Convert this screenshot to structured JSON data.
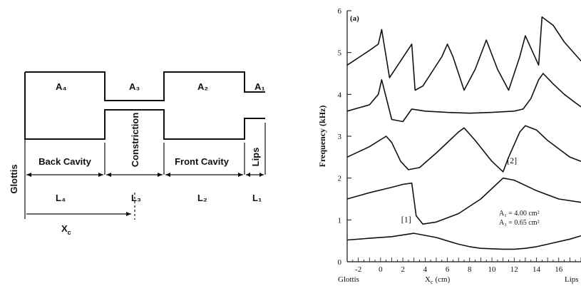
{
  "tube_diagram": {
    "areas": [
      "A₄",
      "A₃",
      "A₂",
      "A₁"
    ],
    "sections": {
      "glottis": "Glottis",
      "back_cavity": "Back Cavity",
      "constriction": "Constriction",
      "front_cavity": "Front Cavity",
      "lips": "Lips"
    },
    "lengths": [
      "L₄",
      "L₃",
      "L₂",
      "L₁"
    ],
    "xc": "X",
    "xc_sub": "c"
  },
  "chart_data": {
    "type": "line",
    "panel_label": "(a)",
    "xlabel": "X",
    "xlabel_sub": "c",
    "xlabel_unit": "(cm)",
    "ylabel": "Frequency (kHz)",
    "xlim": [
      -3,
      18
    ],
    "ylim": [
      0,
      6
    ],
    "x_ticks": [
      -2,
      0,
      2,
      4,
      6,
      8,
      10,
      12,
      14,
      16
    ],
    "y_ticks": [
      0,
      1,
      2,
      3,
      4,
      5,
      6
    ],
    "x_end_labels": {
      "left": "Glottis",
      "right": "Lips"
    },
    "annotations": [
      {
        "text": "[1]",
        "x": 2.3,
        "y": 0.95
      },
      {
        "text": "[2]",
        "x": 11.8,
        "y": 2.35
      }
    ],
    "area_values": [
      "A₁ = 4.00 cm²",
      "A₃ = 0.65 cm²"
    ],
    "series": [
      {
        "x": [
          -3,
          -1,
          1,
          3,
          5,
          7,
          8,
          9,
          11,
          12,
          13,
          14,
          15,
          16,
          17,
          18
        ],
        "values": [
          0.52,
          0.56,
          0.6,
          0.68,
          0.58,
          0.42,
          0.36,
          0.32,
          0.3,
          0.3,
          0.32,
          0.36,
          0.42,
          0.48,
          0.54,
          0.62
        ]
      },
      {
        "x": [
          -3,
          -1,
          1,
          2,
          2.8,
          3.2,
          3.8,
          5,
          7,
          9,
          11,
          12,
          14,
          16,
          18
        ],
        "values": [
          1.5,
          1.65,
          1.78,
          1.85,
          1.88,
          1.1,
          0.9,
          0.95,
          1.15,
          1.5,
          2.0,
          1.95,
          1.7,
          1.5,
          1.42
        ]
      },
      {
        "x": [
          -3,
          -1,
          0.5,
          1,
          1.8,
          2.5,
          3.5,
          5,
          7,
          7.5,
          8.5,
          10,
          11,
          11.5,
          12.5,
          13,
          14,
          15,
          16,
          17,
          18
        ],
        "values": [
          2.5,
          2.75,
          3.0,
          2.85,
          2.4,
          2.2,
          2.25,
          2.6,
          3.1,
          3.2,
          2.9,
          2.4,
          2.15,
          2.5,
          3.1,
          3.25,
          3.15,
          2.9,
          2.7,
          2.5,
          2.4
        ]
      },
      {
        "x": [
          -3,
          -1,
          -0.2,
          0.1,
          1,
          2,
          2.8,
          4,
          6,
          8,
          10,
          12,
          12.8,
          13.5,
          14.2,
          14.6,
          15.5,
          16.5,
          17.5,
          18
        ],
        "values": [
          3.6,
          3.75,
          4.0,
          4.35,
          3.4,
          3.35,
          3.65,
          3.6,
          3.57,
          3.55,
          3.57,
          3.6,
          3.65,
          3.9,
          4.35,
          4.5,
          4.25,
          4.0,
          3.8,
          3.7
        ]
      },
      {
        "x": [
          -3,
          -1,
          -0.2,
          0.1,
          0.8,
          2.8,
          3.1,
          3.8,
          5.5,
          6,
          6.5,
          7.5,
          8.5,
          9.5,
          10.5,
          11.5,
          12.5,
          13,
          14.2,
          14.5,
          15.5,
          16.5,
          17.5,
          18
        ],
        "values": [
          4.7,
          5.05,
          5.2,
          5.55,
          4.4,
          5.2,
          4.1,
          4.2,
          4.9,
          5.2,
          4.9,
          4.1,
          4.6,
          5.3,
          4.6,
          4.1,
          4.9,
          5.4,
          4.7,
          5.85,
          5.65,
          5.25,
          4.95,
          4.8
        ]
      }
    ]
  }
}
